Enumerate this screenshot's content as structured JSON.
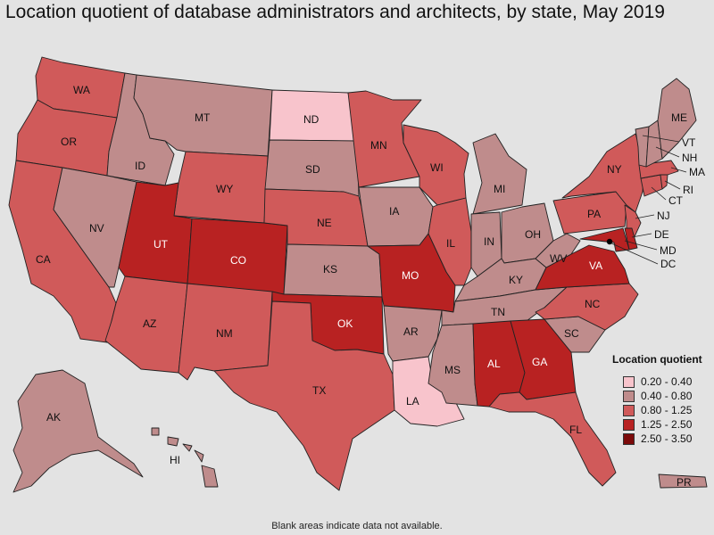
{
  "title": "Location quotient of database administrators and architects, by state, May 2019",
  "legend": {
    "title": "Location quotient",
    "items": [
      {
        "label": "0.20 - 0.40",
        "color": "#f8c4cc"
      },
      {
        "label": "0.40 - 0.80",
        "color": "#bf8c8c"
      },
      {
        "label": "0.80 - 1.25",
        "color": "#d05a5a"
      },
      {
        "label": "1.25 - 2.50",
        "color": "#b82222"
      },
      {
        "label": "2.50 - 3.50",
        "color": "#7c0a0a"
      }
    ]
  },
  "footnote": "Blank areas indicate data not available.",
  "states": [
    {
      "abbr": "WA",
      "class": 2
    },
    {
      "abbr": "OR",
      "class": 2
    },
    {
      "abbr": "CA",
      "class": 2
    },
    {
      "abbr": "ID",
      "class": 1
    },
    {
      "abbr": "NV",
      "class": 1
    },
    {
      "abbr": "MT",
      "class": 1
    },
    {
      "abbr": "WY",
      "class": 2
    },
    {
      "abbr": "UT",
      "class": 3
    },
    {
      "abbr": "CO",
      "class": 3
    },
    {
      "abbr": "AZ",
      "class": 2
    },
    {
      "abbr": "NM",
      "class": 2
    },
    {
      "abbr": "ND",
      "class": 0
    },
    {
      "abbr": "SD",
      "class": 1
    },
    {
      "abbr": "NE",
      "class": 2
    },
    {
      "abbr": "KS",
      "class": 1
    },
    {
      "abbr": "OK",
      "class": 3
    },
    {
      "abbr": "TX",
      "class": 2
    },
    {
      "abbr": "MN",
      "class": 2
    },
    {
      "abbr": "IA",
      "class": 1
    },
    {
      "abbr": "MO",
      "class": 3
    },
    {
      "abbr": "AR",
      "class": 1
    },
    {
      "abbr": "LA",
      "class": 0
    },
    {
      "abbr": "WI",
      "class": 2
    },
    {
      "abbr": "IL",
      "class": 2
    },
    {
      "abbr": "MI",
      "class": 1
    },
    {
      "abbr": "IN",
      "class": 1
    },
    {
      "abbr": "OH",
      "class": 1
    },
    {
      "abbr": "KY",
      "class": 1
    },
    {
      "abbr": "TN",
      "class": 1
    },
    {
      "abbr": "MS",
      "class": 1
    },
    {
      "abbr": "AL",
      "class": 3
    },
    {
      "abbr": "GA",
      "class": 3
    },
    {
      "abbr": "FL",
      "class": 2
    },
    {
      "abbr": "SC",
      "class": 1
    },
    {
      "abbr": "NC",
      "class": 2
    },
    {
      "abbr": "VA",
      "class": 3
    },
    {
      "abbr": "WV",
      "class": 1
    },
    {
      "abbr": "PA",
      "class": 2
    },
    {
      "abbr": "NY",
      "class": 2
    },
    {
      "abbr": "ME",
      "class": 1
    },
    {
      "abbr": "VT",
      "class": 1
    },
    {
      "abbr": "NH",
      "class": 1
    },
    {
      "abbr": "MA",
      "class": 2
    },
    {
      "abbr": "RI",
      "class": 2
    },
    {
      "abbr": "CT",
      "class": 2
    },
    {
      "abbr": "NJ",
      "class": 2
    },
    {
      "abbr": "DE",
      "class": 3
    },
    {
      "abbr": "MD",
      "class": 3
    },
    {
      "abbr": "DC",
      "class": 4
    },
    {
      "abbr": "AK",
      "class": 1
    },
    {
      "abbr": "HI",
      "class": 1
    },
    {
      "abbr": "PR",
      "class": 1
    }
  ]
}
